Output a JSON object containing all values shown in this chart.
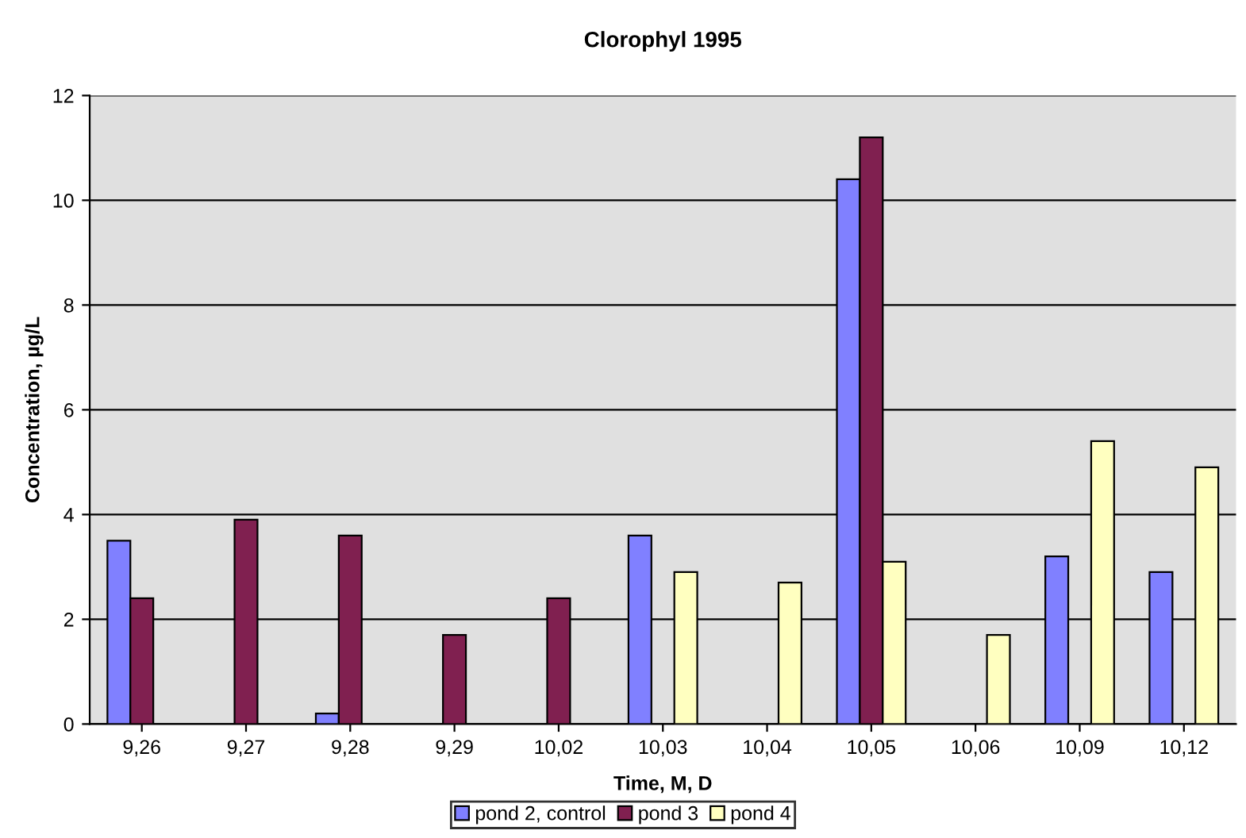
{
  "chart_data": {
    "type": "bar",
    "title": "Clorophyl 1995",
    "xlabel": "Time, M, D",
    "ylabel": "Concentration, µg/L",
    "categories": [
      "9,26",
      "9,27",
      "9,28",
      "9,29",
      "10,02",
      "10,03",
      "10,04",
      "10,05",
      "10,06",
      "10,09",
      "10,12"
    ],
    "series": [
      {
        "name": "pond 2, control",
        "color": "#8080ff",
        "values": [
          3.5,
          null,
          0.2,
          null,
          null,
          3.6,
          null,
          10.4,
          null,
          3.2,
          2.9
        ]
      },
      {
        "name": "pond 3",
        "color": "#802050",
        "values": [
          2.4,
          3.9,
          3.6,
          1.7,
          2.4,
          null,
          null,
          11.2,
          null,
          null,
          null
        ]
      },
      {
        "name": "pond 4",
        "color": "#ffffc0",
        "values": [
          null,
          null,
          null,
          null,
          null,
          2.9,
          2.7,
          3.1,
          1.7,
          5.4,
          4.9
        ]
      }
    ],
    "ylim": [
      0,
      12
    ],
    "yticks": [
      0,
      2,
      4,
      6,
      8,
      10,
      12
    ],
    "grid": "y",
    "legend": "bottom"
  }
}
